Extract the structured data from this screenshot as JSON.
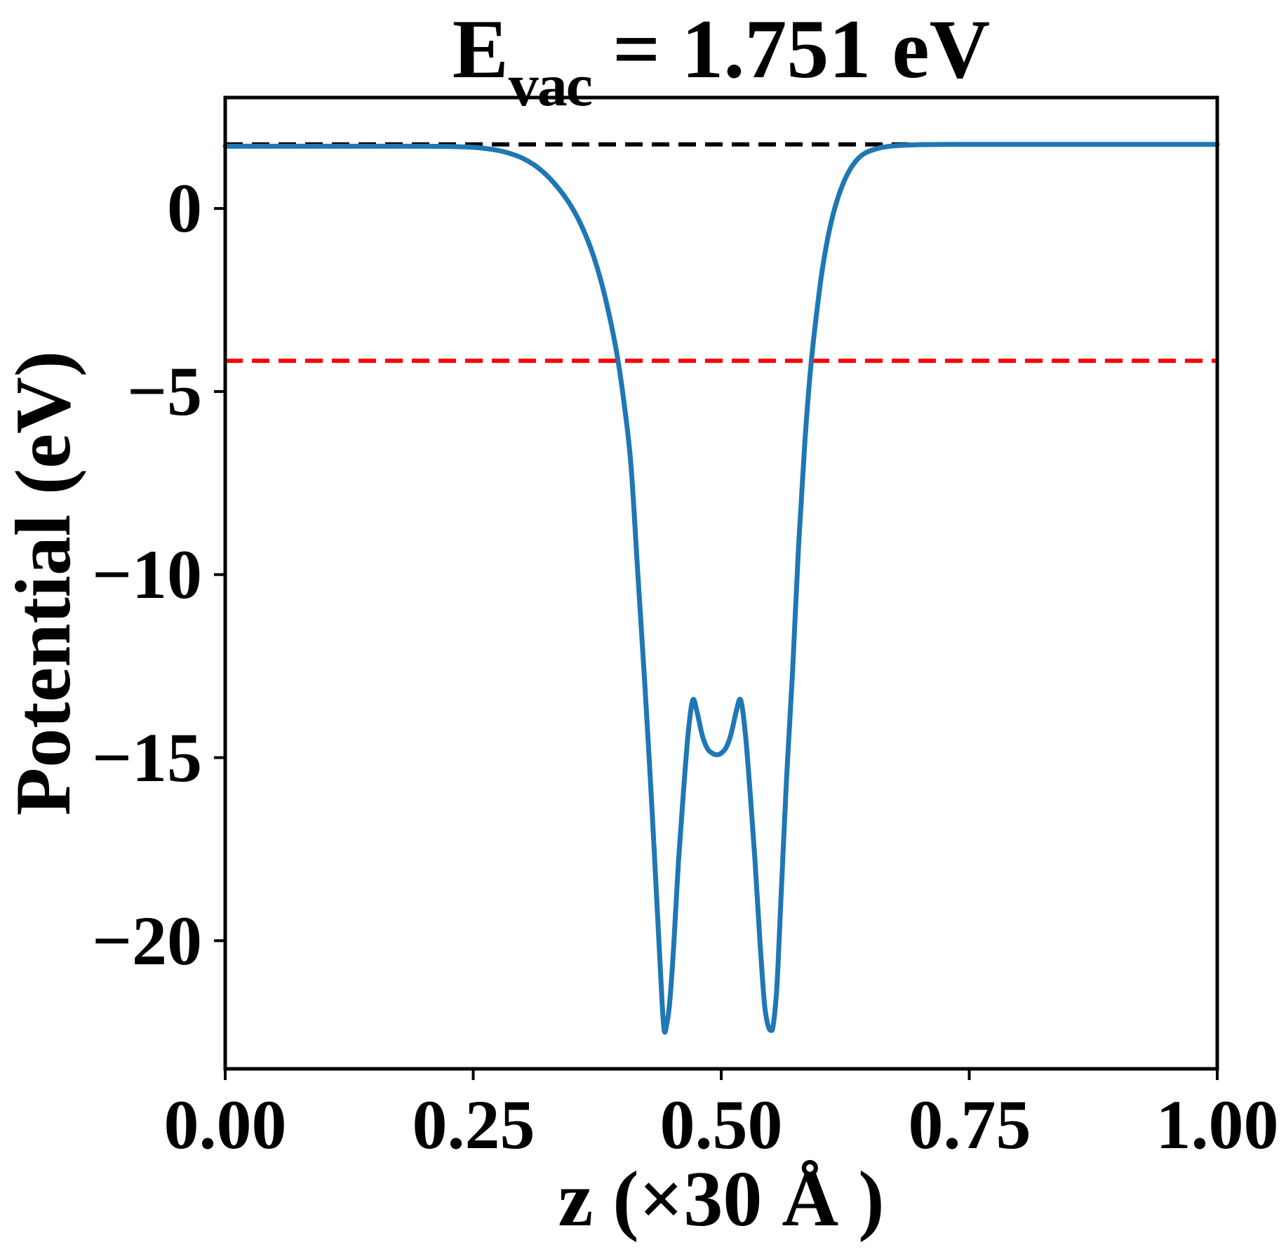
{
  "title_parts": {
    "prefix": "E",
    "subscript": "vac",
    "suffix": " = 1.751 eV"
  },
  "chart_data": {
    "type": "line",
    "title": "E_vac = 1.751 eV",
    "xlabel": "z (×30 Å )",
    "ylabel": "Potential (eV)",
    "xlim": [
      0.0,
      1.0
    ],
    "ylim": [
      -23.5,
      3.03
    ],
    "grid": false,
    "legend_position": "none",
    "xticks": {
      "values": [
        0.0,
        0.25,
        0.5,
        0.75,
        1.0
      ],
      "labels": [
        "0.00",
        "0.25",
        "0.50",
        "0.75",
        "1.00"
      ]
    },
    "yticks": {
      "values": [
        0,
        -5,
        -10,
        -15,
        -20
      ],
      "labels": [
        "0",
        "−5",
        "−10",
        "−15",
        "−20"
      ]
    },
    "series": [
      {
        "name": "planar-averaged-potential",
        "color": "#1f77b4",
        "style": "solid",
        "line_width": 7,
        "x": [
          0.0,
          0.05,
          0.1,
          0.15,
          0.2,
          0.23,
          0.25,
          0.27,
          0.285,
          0.3,
          0.315,
          0.33,
          0.345,
          0.357,
          0.368,
          0.378,
          0.387,
          0.395,
          0.402,
          0.409,
          0.416,
          0.423,
          0.43,
          0.436,
          0.44,
          0.4425,
          0.445,
          0.448,
          0.452,
          0.457,
          0.462,
          0.467,
          0.4715,
          0.476,
          0.481,
          0.486,
          0.491,
          0.4955,
          0.5,
          0.505,
          0.51,
          0.515,
          0.5195,
          0.524,
          0.529,
          0.534,
          0.539,
          0.5435,
          0.547,
          0.55,
          0.5525,
          0.556,
          0.56,
          0.566,
          0.572,
          0.578,
          0.584,
          0.59,
          0.596,
          0.602,
          0.609,
          0.616,
          0.624,
          0.633,
          0.643,
          0.655,
          0.67,
          0.69,
          0.72,
          0.75,
          0.8,
          0.85,
          0.9,
          0.95,
          1.0
        ],
        "y": [
          1.7,
          1.7,
          1.7,
          1.7,
          1.7,
          1.69,
          1.67,
          1.61,
          1.52,
          1.37,
          1.12,
          0.74,
          0.22,
          -0.35,
          -1.05,
          -1.9,
          -2.9,
          -4.0,
          -5.3,
          -7.0,
          -10.0,
          -13.0,
          -16.3,
          -19.4,
          -21.5,
          -22.45,
          -22.3,
          -21.7,
          -20.2,
          -17.8,
          -15.9,
          -14.25,
          -13.42,
          -13.8,
          -14.4,
          -14.75,
          -14.88,
          -14.92,
          -14.88,
          -14.72,
          -14.35,
          -13.75,
          -13.42,
          -14.25,
          -15.9,
          -17.8,
          -20.0,
          -21.7,
          -22.3,
          -22.45,
          -22.3,
          -21.3,
          -19.0,
          -15.5,
          -12.6,
          -9.2,
          -6.5,
          -4.4,
          -2.9,
          -1.65,
          -0.6,
          0.15,
          0.75,
          1.2,
          1.48,
          1.62,
          1.7,
          1.735,
          1.748,
          1.751,
          1.751,
          1.751,
          1.751,
          1.751,
          1.751
        ]
      }
    ],
    "reference_lines": [
      {
        "name": "vacuum-level-line",
        "value": 1.751,
        "color": "#000000",
        "style": "dashed",
        "line_width": 6
      },
      {
        "name": "fermi-level-line",
        "value": -4.16,
        "color": "#ff0000",
        "style": "dashed",
        "line_width": 6
      }
    ],
    "frame_color": "#000000",
    "background_color": "#ffffff"
  }
}
